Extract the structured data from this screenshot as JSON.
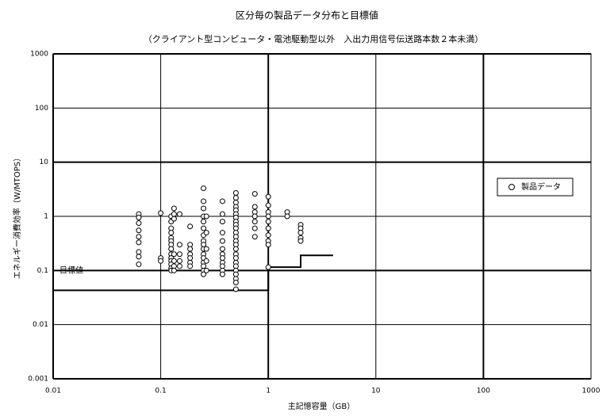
{
  "chart_data": {
    "type": "scatter",
    "title": "区分毎の製品データ分布と目標値",
    "subtitle": "（クライアント型コンピュータ・電池駆動型以外　入出力用信号伝送路本数２本未満）",
    "x_label": "主記憶容量（GB）",
    "y_label": "エネルギー消費効率（W/MTOPS）",
    "x_log": true,
    "y_log": true,
    "grid": true,
    "legend_position": "right",
    "xlim": [
      0.01,
      1000
    ],
    "ylim": [
      0.001,
      1000
    ],
    "xticks": [
      0.01,
      0.1,
      1,
      10,
      100,
      1000
    ],
    "yticks": [
      0.001,
      0.01,
      0.1,
      1,
      10,
      100,
      1000
    ],
    "series": [
      {
        "name": "製品データ",
        "color": "#000000",
        "x": [
          0.0625,
          0.0625,
          0.0625,
          0.0625,
          0.0625,
          0.0625,
          0.0625,
          0.0625,
          0.0625,
          0.1,
          0.1,
          0.1,
          0.125,
          0.125,
          0.125,
          0.125,
          0.125,
          0.125,
          0.125,
          0.125,
          0.125,
          0.125,
          0.125,
          0.125,
          0.125,
          0.125,
          0.133,
          0.133,
          0.133,
          0.133,
          0.133,
          0.133,
          0.133,
          0.15,
          0.15,
          0.15,
          0.15,
          0.15,
          0.1875,
          0.1875,
          0.1875,
          0.1875,
          0.1875,
          0.1875,
          0.1875,
          0.25,
          0.25,
          0.25,
          0.25,
          0.25,
          0.25,
          0.25,
          0.25,
          0.25,
          0.25,
          0.25,
          0.25,
          0.25,
          0.25,
          0.25,
          0.25,
          0.266,
          0.266,
          0.266,
          0.266,
          0.266,
          0.375,
          0.375,
          0.375,
          0.375,
          0.375,
          0.375,
          0.375,
          0.375,
          0.375,
          0.375,
          0.375,
          0.375,
          0.5,
          0.5,
          0.5,
          0.5,
          0.5,
          0.5,
          0.5,
          0.5,
          0.5,
          0.5,
          0.5,
          0.5,
          0.5,
          0.5,
          0.5,
          0.5,
          0.5,
          0.5,
          0.5,
          0.5,
          0.5,
          0.5,
          0.5,
          0.5,
          0.75,
          0.75,
          0.75,
          0.75,
          0.75,
          0.75,
          0.75,
          1,
          1,
          1,
          1,
          1,
          1,
          1,
          1,
          1,
          1,
          1.5,
          1.5,
          2,
          2,
          2,
          2,
          2
        ],
        "values": [
          1.1,
          0.95,
          0.75,
          0.55,
          0.42,
          0.33,
          0.22,
          0.18,
          0.13,
          1.15,
          0.17,
          0.15,
          1.0,
          0.8,
          0.6,
          0.5,
          0.4,
          0.35,
          0.3,
          0.25,
          0.2,
          0.17,
          0.15,
          0.13,
          0.11,
          0.1,
          1.4,
          1.1,
          0.9,
          0.2,
          0.15,
          0.12,
          0.1,
          1.1,
          0.3,
          0.2,
          0.15,
          0.12,
          0.65,
          0.3,
          0.25,
          0.2,
          0.17,
          0.14,
          0.12,
          3.3,
          1.9,
          1.4,
          1.0,
          0.8,
          0.6,
          0.45,
          0.35,
          0.3,
          0.25,
          0.2,
          0.17,
          0.14,
          0.12,
          0.1,
          0.085,
          1.0,
          0.5,
          0.25,
          0.15,
          0.1,
          1.9,
          1.1,
          0.8,
          0.5,
          0.35,
          0.25,
          0.2,
          0.17,
          0.14,
          0.12,
          0.1,
          0.085,
          2.7,
          2.2,
          1.8,
          1.5,
          1.3,
          1.1,
          0.95,
          0.8,
          0.7,
          0.6,
          0.5,
          0.42,
          0.35,
          0.3,
          0.25,
          0.2,
          0.17,
          0.14,
          0.12,
          0.1,
          0.085,
          0.07,
          0.06,
          0.045,
          2.6,
          1.5,
          1.2,
          1.0,
          0.8,
          0.6,
          0.42,
          2.3,
          1.6,
          1.2,
          1.0,
          0.8,
          0.6,
          0.45,
          0.35,
          0.3,
          0.115,
          1.2,
          1.0,
          0.7,
          0.6,
          0.5,
          0.4,
          0.35
        ]
      }
    ],
    "target": {
      "name": "目標値",
      "x": [
        0.01,
        1,
        1,
        2,
        2,
        4
      ],
      "values": [
        0.043,
        0.043,
        0.115,
        0.115,
        0.19,
        0.19
      ]
    }
  }
}
